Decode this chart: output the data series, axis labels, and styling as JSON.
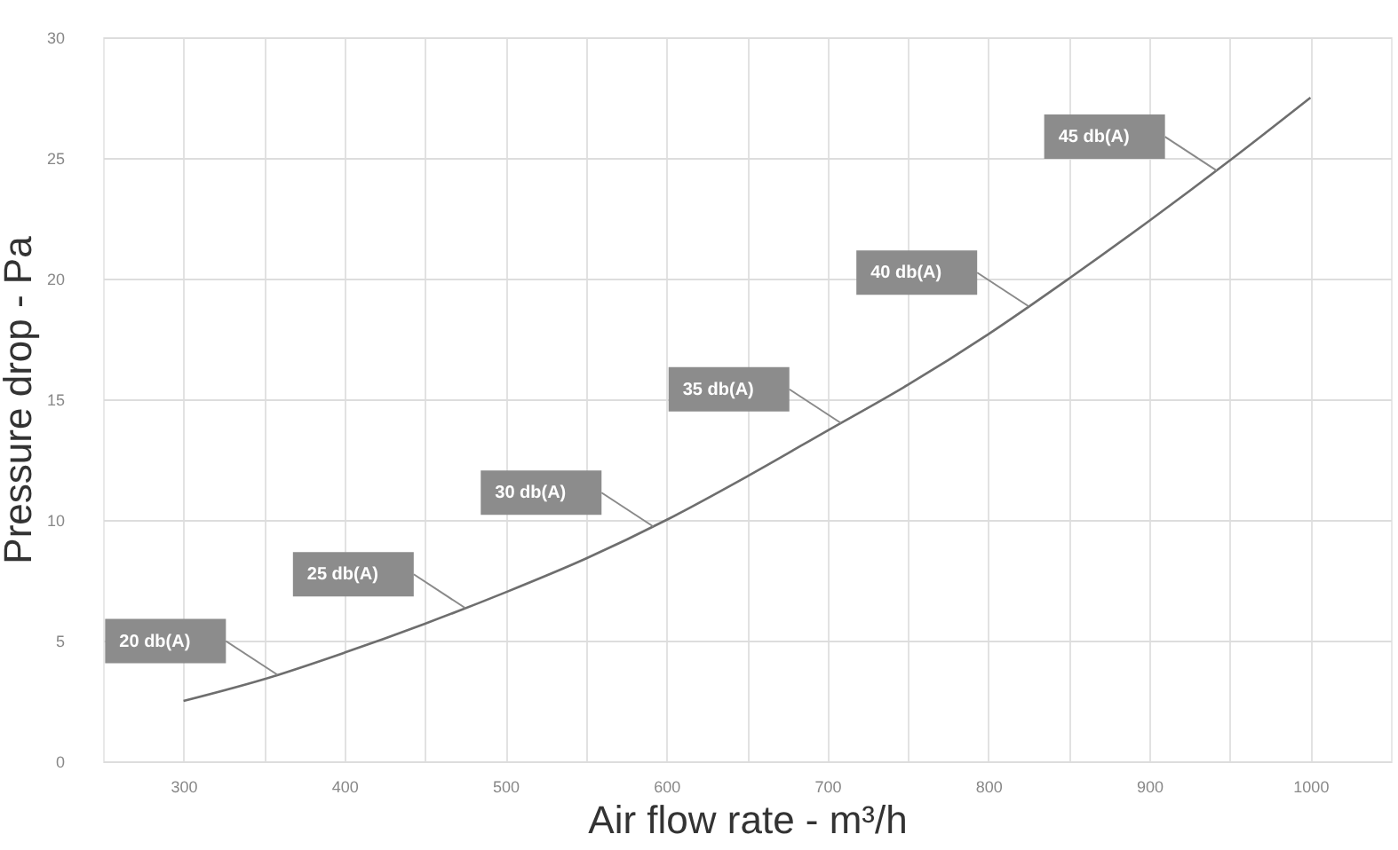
{
  "chart_data": {
    "type": "line",
    "xlabel": "Air flow rate - m³/h",
    "ylabel": "Pressure drop - Pa",
    "x": [
      300,
      350,
      400,
      450,
      500,
      550,
      600,
      650,
      700,
      750,
      800,
      850,
      900,
      950,
      1000
    ],
    "series": [
      {
        "color": "#6e6e6e",
        "values": [
          2.5,
          3.4,
          4.5,
          5.7,
          7,
          8.4,
          10,
          11.8,
          13.7,
          15.6,
          17.7,
          20,
          22.4,
          24.9,
          27.5
        ]
      }
    ],
    "xlim": [
      250,
      1050
    ],
    "xticks": [
      300,
      {
        "value": 350,
        "label": null
      },
      400,
      {
        "value": 450,
        "label": null
      },
      500,
      {
        "value": 550,
        "label": null
      },
      600,
      {
        "value": 650,
        "label": null
      },
      700,
      {
        "value": 750,
        "label": null
      },
      800,
      {
        "value": 850,
        "label": null
      },
      900,
      {
        "value": 950,
        "label": null
      },
      1000
    ],
    "ylim": [
      0,
      30
    ],
    "yticks": [
      0,
      5,
      10,
      15,
      20,
      25,
      30
    ],
    "grid": true,
    "marker": "none",
    "line_style": "solid",
    "annotations": [
      "20 db(A)",
      "25 db(A)",
      "30 db(A)",
      "35 db(A)",
      "40 db(A)",
      "45 db(A)"
    ]
  }
}
